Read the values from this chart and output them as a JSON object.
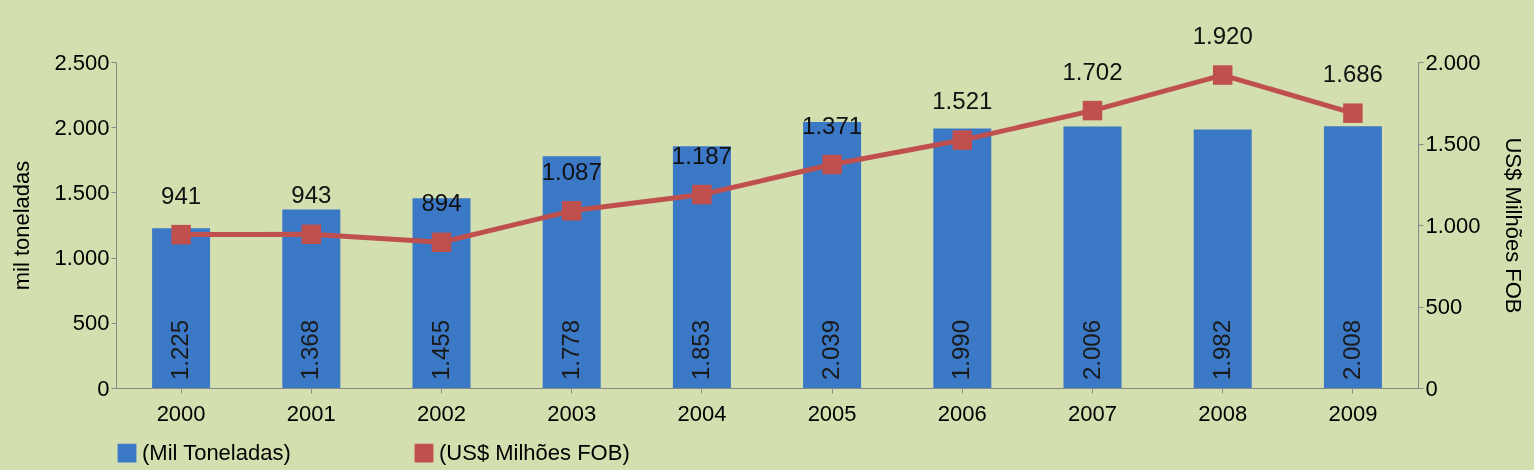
{
  "chart_data": {
    "type": "bar",
    "categories": [
      "2000",
      "2001",
      "2002",
      "2003",
      "2004",
      "2005",
      "2006",
      "2007",
      "2008",
      "2009"
    ],
    "ylabel": "mil toneladas",
    "y2label": "US$ Milhões FOB",
    "ylim": [
      0,
      2500
    ],
    "yticks": [
      0,
      500,
      {
        "value": 1000,
        "label": "1.000"
      },
      {
        "value": 1500,
        "label": "1.500"
      },
      {
        "value": 2000,
        "label": "2.000"
      },
      {
        "value": 2500,
        "label": "2.500"
      }
    ],
    "y2lim": [
      0,
      2000
    ],
    "y2ticks": [
      0,
      500,
      {
        "value": 1000,
        "label": "1.000"
      },
      {
        "value": 1500,
        "label": "1.500"
      },
      {
        "value": 2000,
        "label": "2.000"
      }
    ],
    "series": [
      {
        "name": "(Mil Toneladas)",
        "color": "#3b78c6",
        "values": [
          1225,
          1368,
          1455,
          1778,
          1853,
          2039,
          1990,
          2006,
          1982,
          2008
        ],
        "value_labels": [
          "1.225",
          "1.368",
          "1.455",
          "1.778",
          "1.853",
          "2.039",
          "1.990",
          "2.006",
          "1.982",
          "2.008"
        ]
      },
      {
        "name": "(US$ Milhões FOB)",
        "type": "line",
        "axis": "y2",
        "color": "#c0504d",
        "values": [
          941,
          943,
          894,
          1087,
          1187,
          1371,
          1521,
          1702,
          1920,
          1686
        ],
        "value_labels": [
          "941",
          "943",
          "894",
          "1.087",
          "1.187",
          "1.371",
          "1.521",
          "1.702",
          "1.920",
          "1.686"
        ]
      }
    ],
    "marker": "square",
    "line_style": "solid",
    "legend": "bottom",
    "grid": false
  }
}
